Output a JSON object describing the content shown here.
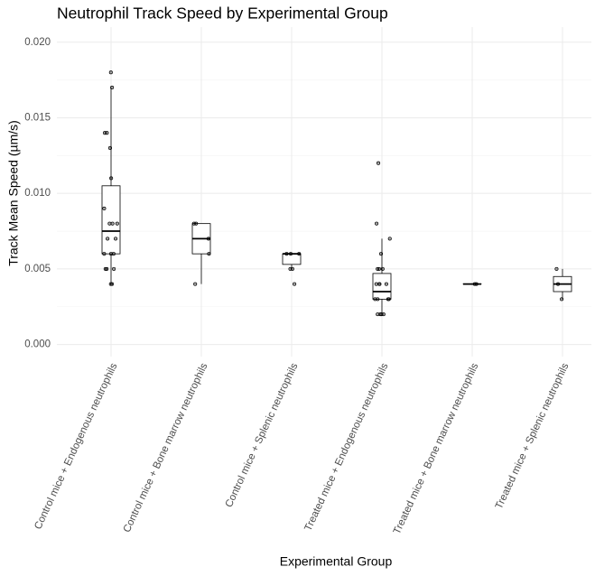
{
  "chart_data": {
    "type": "box",
    "title": "Neutrophil Track Speed by Experimental Group",
    "x_label": "Experimental Group",
    "y_label": "Track Mean Speed (µm/s)",
    "categories": [
      "Control mice + Endogenous neutrophils",
      "Control mice + Bone marrow neutrophils",
      "Control mice + Splenic neutrophils",
      "Treated mice + Endogenous neutrophils",
      "Treated mice + Bone marrow neutrophils",
      "Treated mice + Splenic neutrophils"
    ],
    "boxes": [
      {
        "min": 0.004,
        "q1": 0.006,
        "median": 0.0075,
        "q3": 0.0105,
        "max": 0.017
      },
      {
        "min": 0.004,
        "q1": 0.006,
        "median": 0.007,
        "q3": 0.008,
        "max": 0.008
      },
      {
        "min": 0.005,
        "q1": 0.0053,
        "median": 0.006,
        "q3": 0.006,
        "max": 0.006
      },
      {
        "min": 0.002,
        "q1": 0.003,
        "median": 0.0035,
        "q3": 0.0047,
        "max": 0.007
      },
      {
        "min": 0.004,
        "q1": 0.004,
        "median": 0.004,
        "q3": 0.004,
        "max": 0.004
      },
      {
        "min": 0.003,
        "q1": 0.0035,
        "median": 0.004,
        "q3": 0.0045,
        "max": 0.005
      }
    ],
    "points": [
      [
        0.018,
        0.017,
        0.014,
        0.014,
        0.013,
        0.011,
        0.009,
        0.008,
        0.008,
        0.008,
        0.007,
        0.007,
        0.006,
        0.006,
        0.006,
        0.005,
        0.005,
        0.005,
        0.004,
        0.004
      ],
      [
        0.008,
        0.008,
        0.007,
        0.006,
        0.004
      ],
      [
        0.006,
        0.006,
        0.006,
        0.005,
        0.005,
        0.004
      ],
      [
        0.012,
        0.008,
        0.007,
        0.006,
        0.005,
        0.005,
        0.005,
        0.004,
        0.004,
        0.004,
        0.004,
        0.003,
        0.003,
        0.003,
        0.003,
        0.002,
        0.002,
        0.002,
        0.002
      ],
      [
        0.004,
        0.004
      ],
      [
        0.005,
        0.004,
        0.003
      ]
    ],
    "ylim": [
      -0.0008,
      0.021
    ],
    "yticks": [
      {
        "value": 0,
        "label": "0.000"
      },
      0.005,
      {
        "value": 0.01,
        "label": "0.010"
      },
      0.015,
      {
        "value": 0.02,
        "label": "0.020"
      }
    ],
    "grid": true
  }
}
